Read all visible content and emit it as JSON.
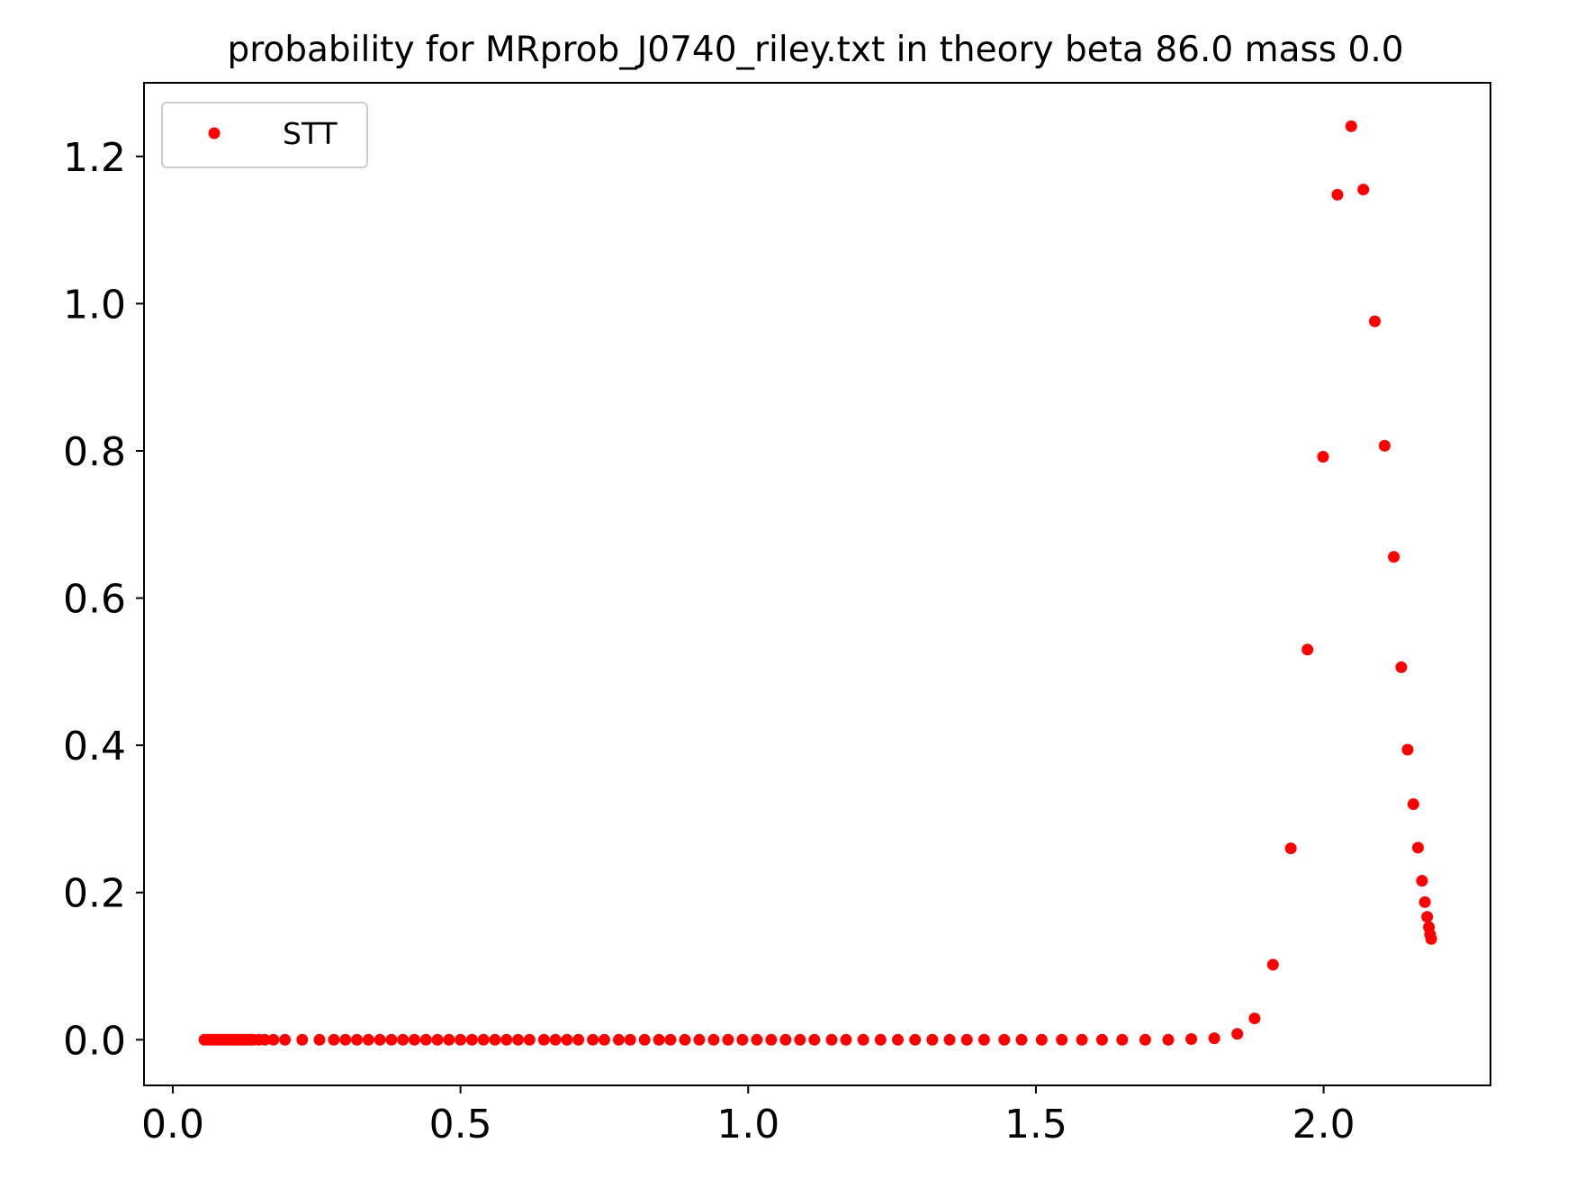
{
  "chart_data": {
    "type": "scatter",
    "title": "probability for MRprob_J0740_riley.txt in theory beta 86.0 mass 0.0",
    "xlabel": "",
    "ylabel": "",
    "xlim": [
      -0.05,
      2.29
    ],
    "ylim": [
      -0.062,
      1.3
    ],
    "xticks": [
      0.0,
      0.5,
      1.0,
      1.5,
      2.0
    ],
    "xtick_labels": [
      "0.0",
      "0.5",
      "1.0",
      "1.5",
      "2.0"
    ],
    "yticks": [
      0.0,
      0.2,
      0.4,
      0.6,
      0.8,
      1.0,
      1.2
    ],
    "ytick_labels": [
      "0.0",
      "0.2",
      "0.4",
      "0.6",
      "0.8",
      "1.0",
      "1.2"
    ],
    "grid": false,
    "legend_position": "upper-left",
    "series": [
      {
        "name": "STT",
        "color": "#ff0000",
        "marker": "circle",
        "x": [
          0.055,
          0.06,
          0.065,
          0.07,
          0.075,
          0.08,
          0.085,
          0.09,
          0.095,
          0.1,
          0.105,
          0.11,
          0.115,
          0.12,
          0.125,
          0.13,
          0.135,
          0.14,
          0.15,
          0.16,
          0.175,
          0.195,
          0.225,
          0.255,
          0.28,
          0.3,
          0.32,
          0.34,
          0.36,
          0.38,
          0.4,
          0.42,
          0.44,
          0.46,
          0.48,
          0.5,
          0.52,
          0.54,
          0.56,
          0.58,
          0.6,
          0.62,
          0.645,
          0.665,
          0.685,
          0.705,
          0.73,
          0.75,
          0.775,
          0.795,
          0.82,
          0.845,
          0.865,
          0.89,
          0.915,
          0.94,
          0.965,
          0.99,
          1.015,
          1.04,
          1.065,
          1.09,
          1.115,
          1.145,
          1.17,
          1.2,
          1.23,
          1.26,
          1.29,
          1.32,
          1.35,
          1.38,
          1.41,
          1.445,
          1.475,
          1.51,
          1.545,
          1.58,
          1.615,
          1.65,
          1.69,
          1.73,
          1.77,
          1.81,
          1.85,
          1.88,
          1.912,
          1.943,
          1.972,
          1.999,
          2.024,
          2.048,
          2.069,
          2.089,
          2.106,
          2.122,
          2.135,
          2.146,
          2.156,
          2.164,
          2.171,
          2.176,
          2.18,
          2.183,
          2.185,
          2.187
        ],
        "y": [
          0,
          0,
          0,
          0,
          0,
          0,
          0,
          0,
          0,
          0,
          0,
          0,
          0,
          0,
          0,
          0,
          0,
          0,
          0,
          0,
          0,
          0,
          0,
          0,
          0,
          0,
          0,
          0,
          0,
          0,
          0,
          0,
          0,
          0,
          0,
          0,
          0,
          0,
          0,
          0,
          0,
          0,
          0,
          0,
          0,
          0,
          0,
          0,
          0,
          0,
          0,
          0,
          0,
          0,
          0,
          0,
          0,
          0,
          0,
          0,
          0,
          0,
          0,
          0,
          0,
          0,
          0,
          0,
          0,
          0,
          0,
          0,
          0,
          0,
          0,
          0,
          0,
          0,
          0,
          0,
          0,
          0,
          0.001,
          0.002,
          0.008,
          0.029,
          0.102,
          0.26,
          0.53,
          0.792,
          1.148,
          1.241,
          1.155,
          0.976,
          0.807,
          0.656,
          0.506,
          0.394,
          0.32,
          0.261,
          0.216,
          0.187,
          0.167,
          0.153,
          0.143,
          0.137
        ]
      }
    ]
  }
}
